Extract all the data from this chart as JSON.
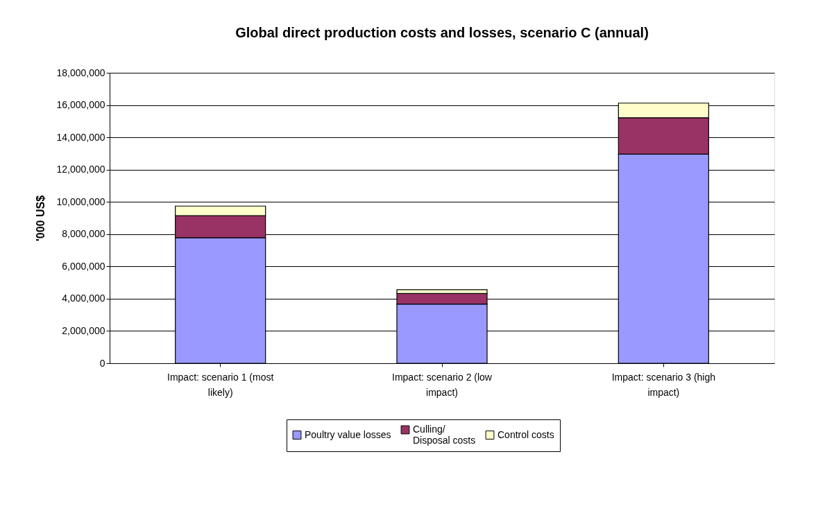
{
  "chart_data": {
    "type": "bar",
    "title": "Global direct production costs and losses, scenario C (annual)",
    "ylabel": "'000 US$",
    "categories": [
      "Impact: scenario 1 (most likely)",
      "Impact: scenario 2 (low impact)",
      "Impact: scenario 3 (high impact)"
    ],
    "stacked": true,
    "series": [
      {
        "name": "Poultry value losses",
        "color": "#9999ff",
        "values": [
          7780000,
          3670000,
          12960000
        ]
      },
      {
        "name": "Culling/ Disposal costs",
        "color": "#993366",
        "values": [
          1370000,
          650000,
          2250000
        ]
      },
      {
        "name": "Control costs",
        "color": "#ffffcc",
        "values": [
          590000,
          240000,
          910000
        ]
      }
    ],
    "ylim": [
      0,
      18000000
    ],
    "yticks": [
      0,
      {
        "value": 2000000,
        "label": "2,000,000"
      },
      {
        "value": 4000000,
        "label": "4,000,000"
      },
      {
        "value": 6000000,
        "label": "6,000,000"
      },
      {
        "value": 8000000,
        "label": "8,000,000"
      },
      {
        "value": 10000000,
        "label": "10,000,000"
      },
      {
        "value": 12000000,
        "label": "12,000,000"
      },
      {
        "value": 14000000,
        "label": "14,000,000"
      },
      {
        "value": 16000000,
        "label": "16,000,000"
      },
      {
        "value": 18000000,
        "label": "18,000,000"
      }
    ],
    "grid": "y",
    "legend": "bottom"
  }
}
